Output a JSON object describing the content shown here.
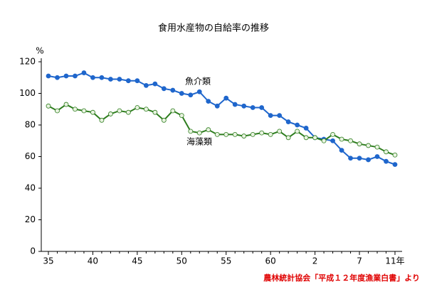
{
  "chart_data": {
    "type": "line",
    "title": "食用水産物の自給率の推移",
    "y_unit": "%",
    "source": "農林統計協会「平成１２年度漁業白書」より",
    "categories": [
      "35",
      null,
      null,
      null,
      null,
      "40",
      null,
      null,
      null,
      null,
      "45",
      null,
      null,
      null,
      null,
      "50",
      null,
      null,
      null,
      null,
      "55",
      null,
      null,
      null,
      null,
      "60",
      null,
      null,
      null,
      null,
      "2",
      null,
      null,
      null,
      null,
      "7",
      null,
      null,
      null,
      "11年"
    ],
    "series": [
      {
        "name": "魚介類",
        "color": "#1f66cc",
        "marker_fill": "#1f66cc",
        "values": [
          111,
          110,
          111,
          111,
          113,
          110,
          110,
          109,
          109,
          108,
          108,
          105,
          106,
          103,
          102,
          100,
          99,
          101,
          95,
          92,
          97,
          93,
          92,
          91,
          91,
          86,
          86,
          82,
          80,
          78,
          72,
          71,
          70,
          64,
          59,
          59,
          58,
          60,
          57,
          55
        ]
      },
      {
        "name": "海藻類",
        "color": "#2e7d1e",
        "marker_fill": "#e8f3e0",
        "values": [
          92,
          89,
          93,
          90,
          89,
          88,
          83,
          87,
          89,
          88,
          91,
          90,
          88,
          83,
          89,
          86,
          76,
          75,
          77,
          74,
          74,
          74,
          73,
          74,
          75,
          74,
          76,
          72,
          76,
          72,
          72,
          70,
          74,
          71,
          70,
          68,
          67,
          66,
          63,
          61
        ]
      }
    ],
    "ylim": [
      0,
      120
    ],
    "yticks": [
      0,
      20,
      40,
      60,
      80,
      100,
      120
    ],
    "grid": false
  }
}
